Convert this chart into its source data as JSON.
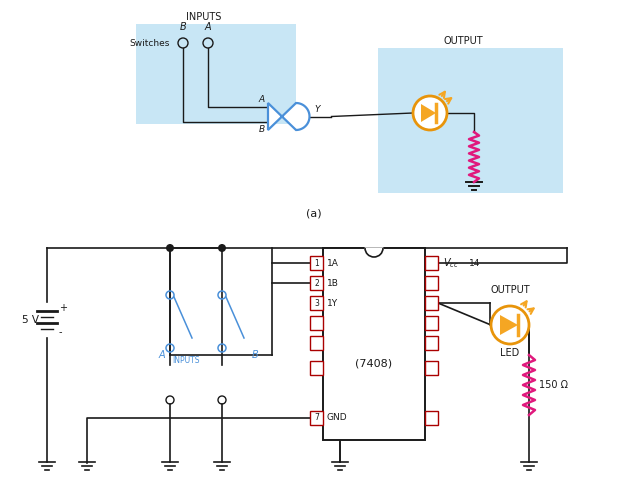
{
  "bg_color": "#ffffff",
  "light_blue": "#c8e6f5",
  "blue_line": "#4a90d9",
  "orange_fill": "#f5a623",
  "orange_edge": "#e8940a",
  "pink": "#e0197d",
  "dark": "#1a1a1a",
  "red_pin": "#aa0000",
  "top_inputs_label": "INPUTS",
  "top_output_label": "OUTPUT",
  "bottom_output_label": "OUTPUT",
  "switches_label": "Switches",
  "ic_label": "(7408)",
  "gnd_label": "GND",
  "led_label": "LED",
  "resistor_label": "150 Ω",
  "five_v_label": "5 V",
  "fig_label_a": "(a)",
  "pin_labels_left": [
    "1A",
    "1B",
    "1Y",
    "",
    "",
    "",
    "GND"
  ],
  "pin_numbers_left": [
    "1",
    "2",
    "3",
    "",
    "",
    "",
    "7"
  ]
}
